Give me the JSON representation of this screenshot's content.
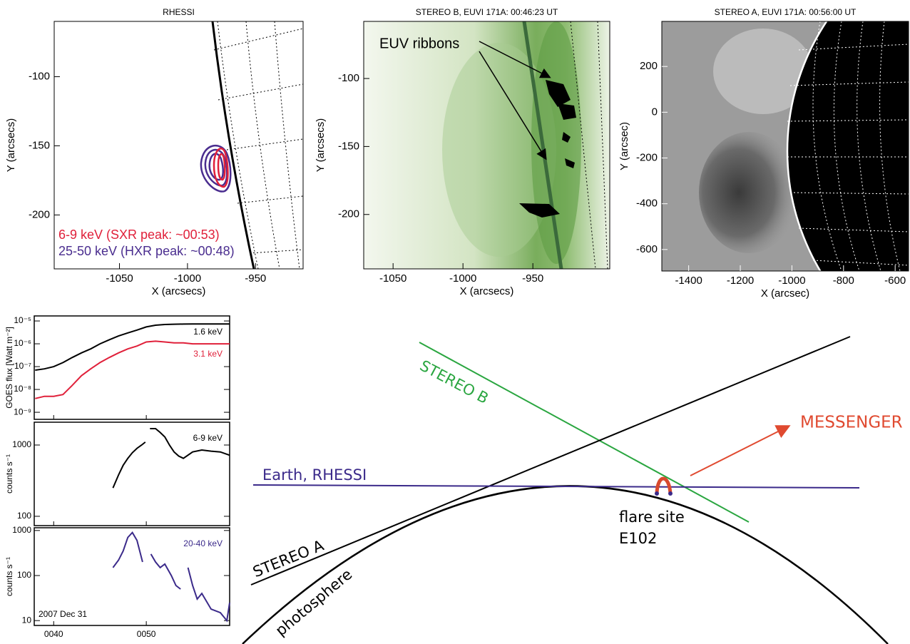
{
  "images": [
    {
      "title": "RHESSI",
      "xlabel": "X (arcsecs)",
      "ylabel": "Y (arcsecs)",
      "xlim": [
        -1098,
        -915
      ],
      "ylim": [
        -239,
        -60
      ],
      "xticks": [
        -1050,
        -1000,
        -950
      ],
      "yticks": [
        -100,
        -150,
        -200
      ],
      "legend": [
        {
          "text": "6-9 keV (SXR peak: ~00:53)",
          "color": "#e0203a"
        },
        {
          "text": "25-50 keV (HXR peak: ~00:48)",
          "color": "#4a2d8f"
        }
      ]
    },
    {
      "title": "STEREO B, EUVI 171A:  00:46:23 UT",
      "xlabel": "X (arcsecs)",
      "ylabel": "Y (arcsecs)",
      "xlim": [
        -1071,
        -895
      ],
      "ylim": [
        -240,
        -58
      ],
      "xticks": [
        -1050,
        -1000,
        -950
      ],
      "yticks": [
        -100,
        -150,
        -200
      ],
      "annotation": "EUV ribbons"
    },
    {
      "title": "STEREO A, EUVI 171A: 00:56:00 UT",
      "xlabel": "X (arcsec)",
      "ylabel": "Y (arcsec)",
      "xlim": [
        -1504,
        -548
      ],
      "ylim": [
        -694,
        397
      ],
      "xticks": [
        -1400,
        -1200,
        -1000,
        -800,
        -600
      ],
      "yticks": [
        200,
        0,
        -200,
        -400,
        -600
      ]
    }
  ],
  "lightcurves": {
    "xlim": [
      37.9,
      59
    ],
    "xticks": [
      {
        "value": 40,
        "label": "0040"
      },
      {
        "value": 50,
        "label": "0050"
      }
    ],
    "date": "2007 Dec 31",
    "panels": [
      {
        "ylabel": "GOES flux [Watt m⁻²]",
        "log": true,
        "ylim": [
          4.9e-10,
          1.66e-05
        ],
        "yticks": [
          {
            "value": 1e-09,
            "label": "10⁻⁹"
          },
          {
            "value": 1e-08,
            "label": "10⁻⁸"
          },
          {
            "value": 1e-07,
            "label": "10⁻⁷"
          },
          {
            "value": 1e-06,
            "label": "10⁻⁶"
          },
          {
            "value": 1e-05,
            "label": "10⁻⁵"
          }
        ],
        "x": [
          38,
          39,
          40,
          41,
          42,
          43,
          44,
          45,
          46,
          47,
          48,
          49,
          50,
          51,
          52,
          53,
          54,
          55,
          56,
          57,
          58,
          59
        ],
        "series": [
          {
            "name": "1.6 keV",
            "color": "#000000",
            "values": [
              7e-08,
              8e-08,
              1e-07,
              1.5e-07,
              2.5e-07,
              4e-07,
              6e-07,
              1e-06,
              1.5e-06,
              2.2e-06,
              3e-06,
              4e-06,
              5.5e-06,
              6.5e-06,
              7e-06,
              7.2e-06,
              7.3e-06,
              7.4e-06,
              7.4e-06,
              7.4e-06,
              7.4e-06,
              7.4e-06
            ]
          },
          {
            "name": "3.1 keV",
            "color": "#e0203a",
            "values": [
              4e-09,
              5e-09,
              5e-09,
              6e-09,
              1.5e-08,
              4e-08,
              8e-08,
              1.5e-07,
              2.5e-07,
              4e-07,
              6e-07,
              8e-07,
              1.2e-06,
              1.3e-06,
              1.2e-06,
              1.1e-06,
              1.1e-06,
              1e-06,
              1e-06,
              1e-06,
              1e-06,
              1e-06
            ]
          }
        ]
      },
      {
        "ylabel": "counts s⁻¹",
        "log": true,
        "ylim": [
          74,
          2090
        ],
        "yticks": [
          100,
          1000
        ],
        "x": [
          46.4,
          47,
          47.5,
          48,
          48.5,
          49,
          49.5,
          49.9,
          50.1,
          50.4,
          51,
          51.5,
          52,
          52.5,
          53,
          53.5,
          54,
          55,
          56,
          57,
          58,
          59
        ],
        "series": [
          {
            "name": "6-9 keV",
            "color": "#000000",
            "values": [
              250,
              380,
              520,
              650,
              780,
              900,
              1000,
              1100,
              null,
              1700,
              1700,
              1500,
              1300,
              1000,
              800,
              700,
              650,
              800,
              850,
              820,
              800,
              720
            ]
          }
        ]
      },
      {
        "ylabel": "counts s⁻¹",
        "log": true,
        "ylim": [
          7.8,
          1150
        ],
        "yticks": [
          10,
          100,
          1000
        ],
        "x": [
          46.4,
          47,
          47.5,
          48,
          48.5,
          49,
          49.6,
          50,
          50.5,
          51,
          51.5,
          52,
          52.7,
          53.2,
          53.7,
          54.1,
          54.5,
          55,
          55.5,
          56,
          57,
          58,
          58.7,
          59
        ],
        "series": [
          {
            "name": "20-40 keV",
            "color": "#3b2a8a",
            "values": [
              150,
              220,
              350,
              700,
              900,
              600,
              200,
              null,
              300,
              200,
              150,
              180,
              100,
              60,
              50,
              null,
              150,
              60,
              30,
              40,
              18,
              15,
              10,
              25
            ]
          }
        ]
      }
    ]
  },
  "diagram": {
    "stereo_b": "STEREO B",
    "messenger": "MESSENGER",
    "earth": "Earth, RHESSI",
    "flare_site": "flare site",
    "flare_location": "E102",
    "stereo_a": "STEREO A",
    "photosphere": "photosphere"
  }
}
